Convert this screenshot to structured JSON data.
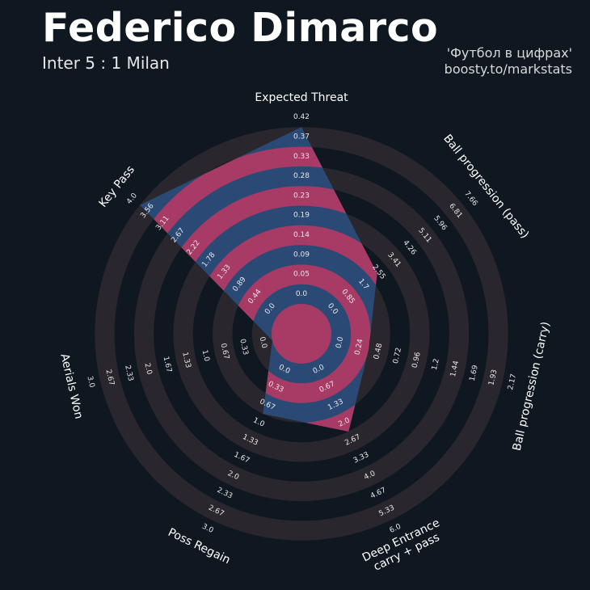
{
  "header": {
    "title": "Federico Dimarco",
    "subtitle": "Inter 5 : 1 Milan",
    "credit_line1": "'Футбол в цифрах'",
    "credit_line2": "boosty.to/markstats"
  },
  "colors": {
    "background": "#0f1820",
    "ring_dark": "#29262d",
    "area_blue": "#2a4a75",
    "area_pink": "#a83a66",
    "label": "#ffffff"
  },
  "chart_data": {
    "type": "radar",
    "params": [
      {
        "label": "Expected Threat",
        "value": 0.42,
        "ticks": [
          "0.0",
          "0.05",
          "0.09",
          "0.14",
          "0.19",
          "0.23",
          "0.28",
          "0.33",
          "0.37",
          "0.42"
        ]
      },
      {
        "label": "Ball progression (pass)",
        "value": 2.9,
        "ticks": [
          "0.0",
          "0.85",
          "1.7",
          "2.55",
          "3.41",
          "4.26",
          "5.11",
          "5.96",
          "6.81",
          "7.66"
        ]
      },
      {
        "label": "Ball progression (carry)",
        "value": 0.48,
        "ticks": [
          "0.0",
          "0.24",
          "0.48",
          "0.72",
          "0.96",
          "1.2",
          "1.44",
          "1.69",
          "1.93",
          "2.17"
        ]
      },
      {
        "label": "Deep Entrance\ncarry + pass",
        "value": 2.67,
        "ticks": [
          "0.0",
          "0.67",
          "1.33",
          "2.0",
          "2.67",
          "3.33",
          "4.0",
          "4.67",
          "5.33",
          "6.0"
        ]
      },
      {
        "label": "Poss Regain",
        "value": 1.0,
        "ticks": [
          "0.0",
          "0.33",
          "0.67",
          "1.0",
          "1.33",
          "1.67",
          "2.0",
          "2.33",
          "2.67",
          "3.0"
        ]
      },
      {
        "label": "Aerials Won",
        "value": 0.0,
        "ticks": [
          "0.0",
          "0.33",
          "0.67",
          "1.0",
          "1.33",
          "1.67",
          "2.0",
          "2.33",
          "2.67",
          "3.0"
        ]
      },
      {
        "label": "Key Pass",
        "value": 4.0,
        "ticks": [
          "0.0",
          "0.44",
          "0.89",
          "1.33",
          "1.78",
          "2.22",
          "2.67",
          "3.11",
          "3.56",
          "4.0"
        ]
      }
    ]
  }
}
